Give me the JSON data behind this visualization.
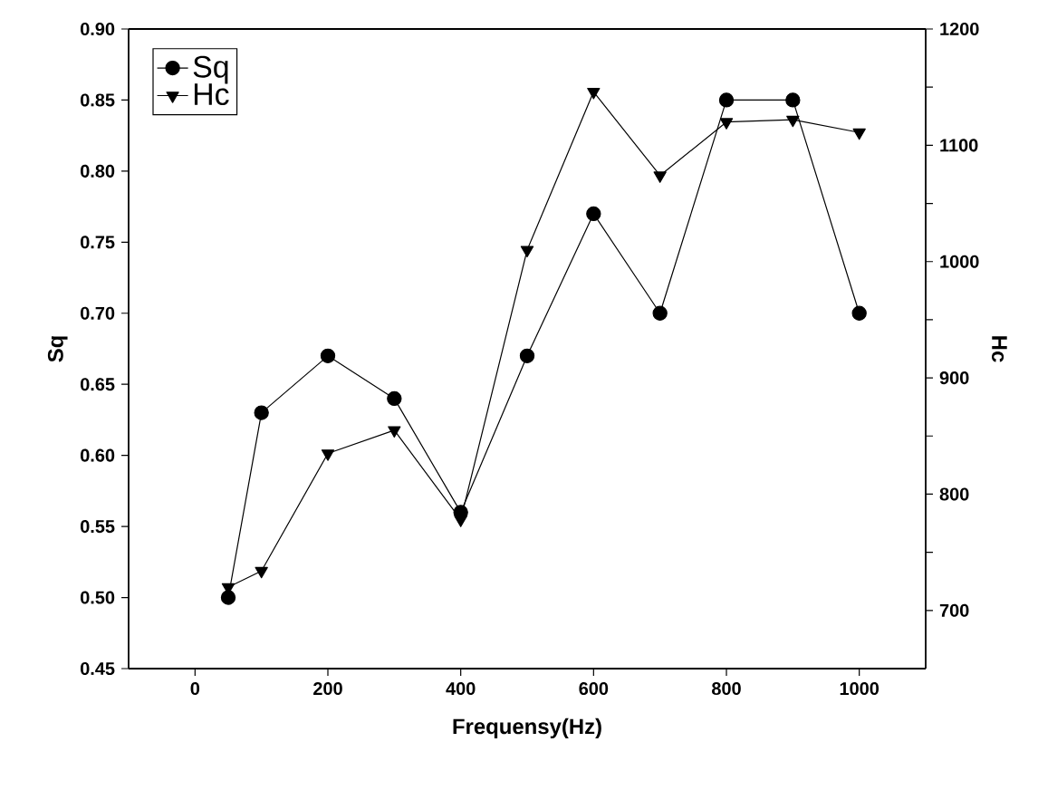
{
  "chart_data": {
    "type": "line",
    "xlabel": "Frequensy(Hz)",
    "ylabel": "Sq",
    "y2label": "Hc",
    "x": [
      50,
      100,
      200,
      300,
      400,
      500,
      600,
      700,
      800,
      900,
      1000
    ],
    "series": [
      {
        "name": "Sq",
        "color": "#000000",
        "marker": "circle",
        "values": [
          0.5,
          0.63,
          0.67,
          0.64,
          0.56,
          0.67,
          0.77,
          0.7,
          0.85,
          0.85,
          0.7
        ]
      },
      {
        "name": "Hc",
        "color": "#000000",
        "marker": "triangle",
        "axis": "y2",
        "values": [
          720,
          734,
          835,
          855,
          778,
          1010,
          1146,
          1074,
          1120,
          1122,
          1111
        ]
      }
    ],
    "xlim": [
      -100,
      1100
    ],
    "xticks": [
      0,
      200,
      400,
      600,
      800,
      1000
    ],
    "ylim": [
      0.45,
      0.9
    ],
    "yticks": [
      0.45,
      {
        "value": 0.5,
        "label": "0.50"
      },
      0.55,
      {
        "value": 0.6,
        "label": "0.60"
      },
      0.65,
      {
        "value": 0.7,
        "label": "0.70"
      },
      0.75,
      {
        "value": 0.8,
        "label": "0.80"
      },
      0.85,
      {
        "value": 0.9,
        "label": "0.90"
      }
    ],
    "y2lim": [
      650,
      1200
    ],
    "y2ticks": [
      700,
      {
        "value": 750,
        "label": null
      },
      800,
      {
        "value": 850,
        "label": null
      },
      900,
      {
        "value": 950,
        "label": null
      },
      1000,
      {
        "value": 1050,
        "label": null
      },
      1100,
      {
        "value": 1150,
        "label": null
      },
      1200
    ],
    "legend": "top left",
    "line_style": "solid",
    "grid": false
  }
}
